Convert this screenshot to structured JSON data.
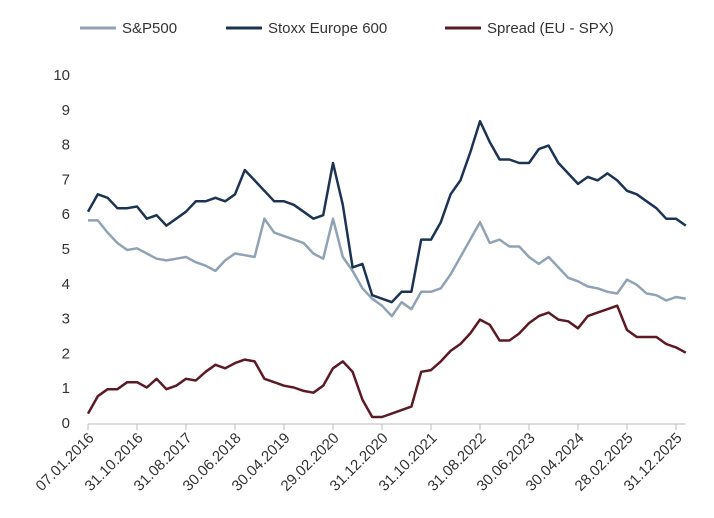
{
  "chart_data": {
    "type": "line",
    "categories": [
      "07.01.2016",
      null,
      null,
      null,
      null,
      "31.10.2016",
      null,
      null,
      null,
      null,
      "31.08.2017",
      null,
      null,
      null,
      null,
      "30.06.2018",
      null,
      null,
      null,
      null,
      "30.04.2019",
      null,
      null,
      null,
      null,
      "29.02.2020",
      null,
      null,
      null,
      null,
      "31.12.2020",
      null,
      null,
      null,
      null,
      "31.10.2021",
      null,
      null,
      null,
      null,
      "31.08.2022",
      null,
      null,
      null,
      null,
      "30.06.2023",
      null,
      null,
      null,
      null,
      "30.04.2024",
      null,
      null,
      null,
      null,
      "28.02.2025",
      null,
      null,
      null,
      null,
      "31.12.2025",
      null
    ],
    "series": [
      {
        "name": "S&P500",
        "color": "#8fa3b5",
        "values": [
          5.85,
          5.85,
          5.5,
          5.2,
          5.0,
          5.05,
          4.9,
          4.75,
          4.7,
          4.75,
          4.8,
          4.65,
          4.55,
          4.4,
          4.7,
          4.9,
          4.85,
          4.8,
          5.9,
          5.5,
          5.4,
          5.3,
          5.2,
          4.9,
          4.75,
          5.9,
          4.8,
          4.4,
          3.9,
          3.6,
          3.4,
          3.1,
          3.5,
          3.3,
          3.8,
          3.8,
          3.9,
          4.3,
          4.8,
          5.3,
          5.8,
          5.2,
          5.3,
          5.1,
          5.1,
          4.8,
          4.6,
          4.8,
          4.5,
          4.2,
          4.1,
          3.95,
          3.9,
          3.8,
          3.75,
          4.15,
          4.0,
          3.75,
          3.7,
          3.55,
          3.65,
          3.6
        ]
      },
      {
        "name": "Stoxx Europe 600",
        "color": "#1c3454",
        "values": [
          6.1,
          6.6,
          6.5,
          6.2,
          6.2,
          6.25,
          5.9,
          6.0,
          5.7,
          5.9,
          6.1,
          6.4,
          6.4,
          6.5,
          6.4,
          6.6,
          7.3,
          7.0,
          6.7,
          6.4,
          6.4,
          6.3,
          6.1,
          5.9,
          6.0,
          7.5,
          6.3,
          4.5,
          4.6,
          3.7,
          3.6,
          3.5,
          3.8,
          3.8,
          5.3,
          5.3,
          5.8,
          6.6,
          7.0,
          7.8,
          8.7,
          8.1,
          7.6,
          7.6,
          7.5,
          7.5,
          7.9,
          8.0,
          7.5,
          7.2,
          6.9,
          7.1,
          7.0,
          7.2,
          7.0,
          6.7,
          6.6,
          6.4,
          6.2,
          5.9,
          5.9,
          5.7
        ]
      },
      {
        "name": "Spread (EU - SPX)",
        "color": "#5c1a24",
        "values": [
          0.3,
          0.8,
          1.0,
          1.0,
          1.2,
          1.2,
          1.05,
          1.3,
          1.0,
          1.1,
          1.3,
          1.25,
          1.5,
          1.7,
          1.6,
          1.75,
          1.85,
          1.8,
          1.3,
          1.2,
          1.1,
          1.05,
          0.95,
          0.9,
          1.1,
          1.6,
          1.8,
          1.5,
          0.7,
          0.2,
          0.2,
          0.3,
          0.4,
          0.5,
          1.5,
          1.55,
          1.8,
          2.1,
          2.3,
          2.6,
          3.0,
          2.85,
          2.4,
          2.4,
          2.6,
          2.9,
          3.1,
          3.2,
          3.0,
          2.95,
          2.75,
          3.1,
          3.2,
          3.3,
          3.4,
          2.7,
          2.5,
          2.5,
          2.5,
          2.3,
          2.2,
          2.05
        ]
      }
    ],
    "ylim": [
      0,
      10
    ],
    "yticks": [
      0,
      1,
      2,
      3,
      4,
      5,
      6,
      7,
      8,
      9,
      10
    ],
    "grid": false,
    "legend": "top"
  }
}
